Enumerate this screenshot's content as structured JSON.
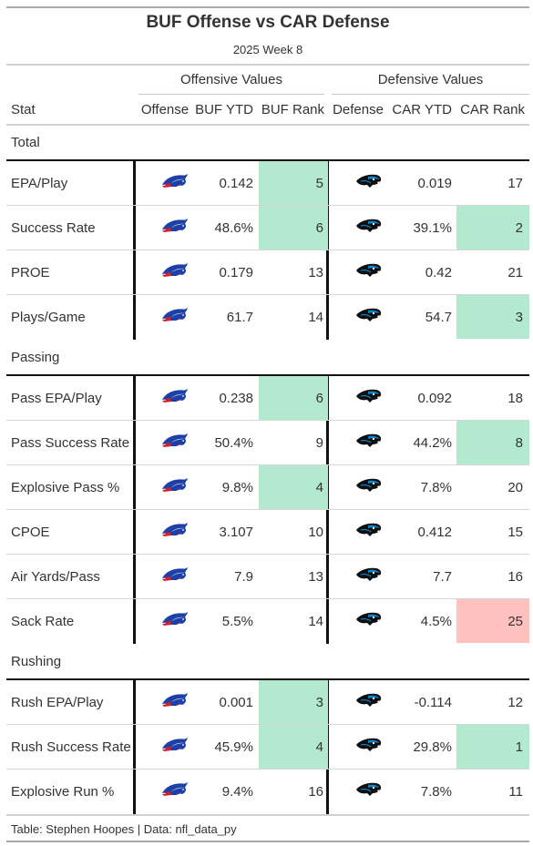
{
  "title": "BUF Offense vs CAR Defense",
  "subtitle": "2025 Week 8",
  "spanners": {
    "offense": "Offensive Values",
    "defense": "Defensive Values"
  },
  "columns": {
    "stat": "Stat",
    "offense": "Offense",
    "off_ytd": "BUF YTD",
    "off_rank": "BUF Rank",
    "defense": "Defense",
    "def_ytd": "CAR YTD",
    "def_rank": "CAR Rank"
  },
  "offense_team_logo": "bills-logo-icon",
  "defense_team_logo": "panthers-logo-icon",
  "colors": {
    "good": "#b3e9cf",
    "bad": "#ffc0c0"
  },
  "groups": [
    {
      "label": "Total",
      "rows": [
        {
          "stat": "EPA/Play",
          "off_ytd": "0.142",
          "off_rank": "5",
          "off_hl": "good",
          "def_ytd": "0.019",
          "def_rank": "17",
          "def_hl": ""
        },
        {
          "stat": "Success Rate",
          "off_ytd": "48.6%",
          "off_rank": "6",
          "off_hl": "good",
          "def_ytd": "39.1%",
          "def_rank": "2",
          "def_hl": "good"
        },
        {
          "stat": "PROE",
          "off_ytd": "0.179",
          "off_rank": "13",
          "off_hl": "",
          "def_ytd": "0.42",
          "def_rank": "21",
          "def_hl": ""
        },
        {
          "stat": "Plays/Game",
          "off_ytd": "61.7",
          "off_rank": "14",
          "off_hl": "",
          "def_ytd": "54.7",
          "def_rank": "3",
          "def_hl": "good"
        }
      ]
    },
    {
      "label": "Passing",
      "rows": [
        {
          "stat": "Pass EPA/Play",
          "off_ytd": "0.238",
          "off_rank": "6",
          "off_hl": "good",
          "def_ytd": "0.092",
          "def_rank": "18",
          "def_hl": ""
        },
        {
          "stat": "Pass Success Rate",
          "off_ytd": "50.4%",
          "off_rank": "9",
          "off_hl": "",
          "def_ytd": "44.2%",
          "def_rank": "8",
          "def_hl": "good"
        },
        {
          "stat": "Explosive Pass %",
          "off_ytd": "9.8%",
          "off_rank": "4",
          "off_hl": "good",
          "def_ytd": "7.8%",
          "def_rank": "20",
          "def_hl": ""
        },
        {
          "stat": "CPOE",
          "off_ytd": "3.107",
          "off_rank": "10",
          "off_hl": "",
          "def_ytd": "0.412",
          "def_rank": "15",
          "def_hl": ""
        },
        {
          "stat": "Air Yards/Pass",
          "off_ytd": "7.9",
          "off_rank": "13",
          "off_hl": "",
          "def_ytd": "7.7",
          "def_rank": "16",
          "def_hl": ""
        },
        {
          "stat": "Sack Rate",
          "off_ytd": "5.5%",
          "off_rank": "14",
          "off_hl": "",
          "def_ytd": "4.5%",
          "def_rank": "25",
          "def_hl": "bad"
        }
      ]
    },
    {
      "label": "Rushing",
      "rows": [
        {
          "stat": "Rush EPA/Play",
          "off_ytd": "0.001",
          "off_rank": "3",
          "off_hl": "good",
          "def_ytd": "-0.114",
          "def_rank": "12",
          "def_hl": ""
        },
        {
          "stat": "Rush Success Rate",
          "off_ytd": "45.9%",
          "off_rank": "4",
          "off_hl": "good",
          "def_ytd": "29.8%",
          "def_rank": "1",
          "def_hl": "good"
        },
        {
          "stat": "Explosive Run %",
          "off_ytd": "9.4%",
          "off_rank": "16",
          "off_hl": "",
          "def_ytd": "7.8%",
          "def_rank": "11",
          "def_hl": ""
        }
      ]
    }
  ],
  "footer": "Table: Stephen Hoopes | Data: nfl_data_py"
}
